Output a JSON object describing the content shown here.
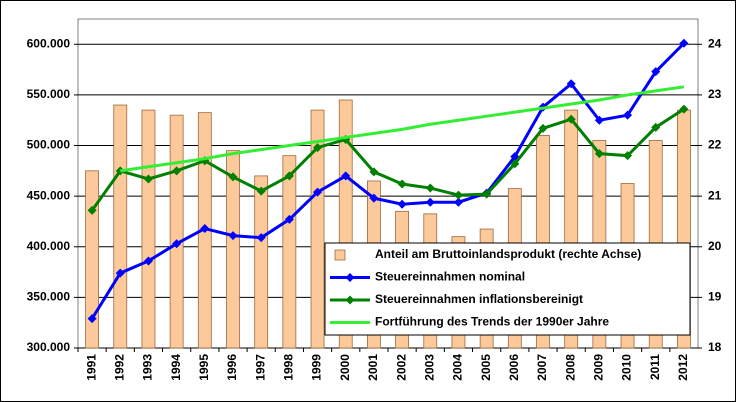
{
  "chart_data": {
    "type": "bar_line",
    "categories": [
      "1991",
      "1992",
      "1993",
      "1994",
      "1995",
      "1996",
      "1997",
      "1998",
      "1999",
      "2000",
      "2001",
      "2002",
      "2003",
      "2004",
      "2005",
      "2006",
      "2007",
      "2008",
      "2009",
      "2010",
      "2011",
      "2012"
    ],
    "series": [
      {
        "name": "Anteil am Bruttoinlandsprodukt (rechte Achse)",
        "type": "bar",
        "axis": "y2",
        "color": "#fcc99a",
        "values": [
          21.5,
          22.8,
          22.7,
          22.6,
          22.65,
          21.9,
          21.4,
          21.8,
          22.7,
          22.9,
          21.3,
          20.7,
          20.65,
          20.2,
          20.35,
          21.15,
          22.2,
          22.7,
          22.1,
          21.25,
          22.1,
          22.7
        ]
      },
      {
        "name": "Steuereinnahmen nominal",
        "type": "line",
        "marker": true,
        "color": "#0000ff",
        "values": [
          329000,
          374000,
          386000,
          403000,
          418000,
          411000,
          409000,
          427000,
          454000,
          470000,
          448000,
          442000,
          444000,
          444000,
          453000,
          489000,
          538000,
          561000,
          525000,
          530000,
          573000,
          601000
        ]
      },
      {
        "name": "Steuereinnahmen inflationsbereinigt",
        "type": "line",
        "marker": true,
        "color": "#008000",
        "values": [
          436000,
          475000,
          467000,
          475000,
          485000,
          469000,
          455000,
          470000,
          498000,
          506000,
          474000,
          462000,
          458000,
          451000,
          452000,
          482000,
          517000,
          526000,
          492000,
          490000,
          518000,
          536000
        ]
      },
      {
        "name": "Fortführung des Trends der 1990er Jahre",
        "type": "line",
        "marker": false,
        "color": "#33ee33",
        "values": [
          null,
          475000,
          479000,
          483000,
          487000,
          492000,
          496000,
          500000,
          504000,
          508000,
          512000,
          516000,
          521000,
          525000,
          529000,
          533000,
          537000,
          541000,
          545000,
          550000,
          554000,
          558000
        ]
      }
    ],
    "ylim": [
      300000,
      625000
    ],
    "yticks": [
      {
        "value": 300000,
        "label": "300.000"
      },
      {
        "value": 350000,
        "label": "350.000"
      },
      {
        "value": 400000,
        "label": "400.000"
      },
      {
        "value": 450000,
        "label": "450.000"
      },
      {
        "value": 500000,
        "label": "500.000"
      },
      {
        "value": 550000,
        "label": "550.000"
      },
      {
        "value": 600000,
        "label": "600.000"
      }
    ],
    "y2lim": [
      18,
      24.5
    ],
    "y2ticks": [
      18,
      19,
      20,
      21,
      22,
      23,
      24
    ],
    "grid": true
  }
}
